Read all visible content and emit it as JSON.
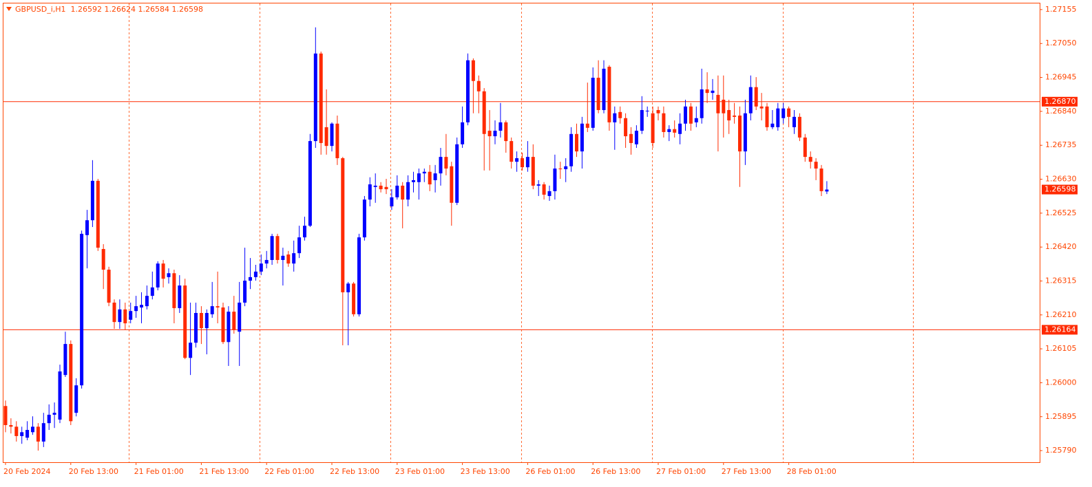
{
  "chart_data": {
    "type": "candlestick",
    "title": "GBPUSD_i,H1  1.26592 1.26624 1.26584 1.26598",
    "up_color": "#0000ff",
    "down_color": "#ff2a00",
    "ylim": [
      1.25754,
      1.27174
    ],
    "yticks": [
      1.27155,
      {
        "value": 1.2705,
        "label": "1.27050"
      },
      1.26945,
      {
        "value": 1.2684,
        "label": "1.26840"
      },
      1.26735,
      {
        "value": 1.2663,
        "label": "1.26630"
      },
      1.26525,
      {
        "value": 1.2642,
        "label": "1.26420"
      },
      1.26315,
      {
        "value": 1.2621,
        "label": "1.26210"
      },
      1.26105,
      {
        "value": 1.26,
        "label": "1.26000"
      },
      1.25895,
      {
        "value": 1.2579,
        "label": "1.25790"
      }
    ],
    "levels": [
      {
        "value": 1.2687,
        "label": "1.26870"
      },
      1.26164
    ],
    "last_price": 1.26598,
    "categories": [
      "20 Feb 2024",
      null,
      null,
      null,
      null,
      null,
      null,
      null,
      null,
      null,
      null,
      null,
      "20 Feb 13:00",
      null,
      null,
      null,
      null,
      null,
      null,
      null,
      null,
      null,
      null,
      null,
      "21 Feb 01:00",
      null,
      null,
      null,
      null,
      null,
      null,
      null,
      null,
      null,
      null,
      null,
      "21 Feb 13:00",
      null,
      null,
      null,
      null,
      null,
      null,
      null,
      null,
      null,
      null,
      null,
      "22 Feb 01:00",
      null,
      null,
      null,
      null,
      null,
      null,
      null,
      null,
      null,
      null,
      null,
      "22 Feb 13:00",
      null,
      null,
      null,
      null,
      null,
      null,
      null,
      null,
      null,
      null,
      null,
      "23 Feb 01:00",
      null,
      null,
      null,
      null,
      null,
      null,
      null,
      null,
      null,
      null,
      null,
      "23 Feb 13:00",
      null,
      null,
      null,
      null,
      null,
      null,
      null,
      null,
      null,
      null,
      null,
      "26 Feb 01:00",
      null,
      null,
      null,
      null,
      null,
      null,
      null,
      null,
      null,
      null,
      null,
      "26 Feb 13:00",
      null,
      null,
      null,
      null,
      null,
      null,
      null,
      null,
      null,
      null,
      null,
      "27 Feb 01:00",
      null,
      null,
      null,
      null,
      null,
      null,
      null,
      null,
      null,
      null,
      null,
      "27 Feb 13:00",
      null,
      null,
      null,
      null,
      null,
      null,
      null,
      null,
      null,
      null,
      null,
      "28 Feb 01:00",
      null,
      null,
      null,
      null,
      null,
      null,
      null
    ],
    "open": [
      1.25928,
      1.25869,
      1.25864,
      1.25835,
      1.2583,
      1.25847,
      1.25864,
      1.25818,
      1.25875,
      1.25901,
      1.25886,
      1.26024,
      1.2612,
      1.25907,
      1.25992,
      1.26457,
      1.26503,
      1.26625,
      1.26414,
      1.2635,
      1.26248,
      1.26188,
      1.26227,
      1.26195,
      1.26222,
      1.26233,
      1.26237,
      1.26269,
      1.26295,
      1.26369,
      1.26327,
      1.26339,
      1.26231,
      1.26301,
      1.26077,
      1.26124,
      1.26216,
      1.26169,
      1.26212,
      1.26237,
      1.26233,
      1.26126,
      1.2622,
      1.26158,
      1.26248,
      1.26316,
      1.26327,
      1.26344,
      1.26369,
      1.2638,
      1.26454,
      1.2638,
      1.26397,
      1.26369,
      1.26401,
      1.2645,
      1.26486,
      1.26748,
      1.27019,
      1.26791,
      1.26733,
      1.26802,
      1.26695,
      1.2628,
      1.26307,
      1.26212,
      1.2645,
      1.26567,
      1.26606,
      1.2661,
      1.26606,
      1.26546,
      1.26574,
      1.2661,
      1.26567,
      1.26621,
      1.26621,
      1.26648,
      1.26653,
      1.26627,
      1.26648,
      1.26699,
      1.2667,
      1.26557,
      1.26738,
      1.26806,
      1.26998,
      1.26934,
      1.26902,
      1.2678,
      1.26763,
      1.2678,
      1.26806,
      1.26748,
      1.26684,
      1.26695,
      1.26667,
      1.26699,
      1.2661,
      1.26614,
      1.26578,
      1.26593,
      1.26663,
      1.26661,
      1.2667,
      1.2677,
      1.26716,
      1.26802,
      1.26789,
      1.26944,
      1.26844,
      1.26978,
      1.26806,
      1.26838,
      1.26819,
      1.2677,
      1.26738,
      1.2678,
      1.2684,
      1.26834,
      1.26844,
      1.26834,
      1.26776,
      1.26785,
      1.2677,
      1.26802,
      1.26855,
      1.26806,
      1.26819,
      1.26908,
      1.26897,
      1.26891,
      1.26876,
      1.26844,
      1.26827,
      1.26827,
      1.26716,
      1.26834,
      1.26915,
      1.26855,
      1.26855,
      1.26791,
      1.26791,
      1.26819,
      1.26849,
      1.26791,
      1.26823,
      1.26759,
      1.26699,
      1.26684,
      1.26663,
      1.26592
    ],
    "high": [
      1.25945,
      1.2589,
      1.25881,
      1.25864,
      1.25881,
      1.25896,
      1.25875,
      1.25907,
      1.25933,
      1.25939,
      1.26056,
      1.26158,
      1.26131,
      1.26014,
      1.26471,
      1.26535,
      1.26689,
      1.26631,
      1.26429,
      1.26359,
      1.26258,
      1.26258,
      1.26248,
      1.26248,
      1.26269,
      1.2628,
      1.26301,
      1.26344,
      1.26376,
      1.2638,
      1.26354,
      1.2635,
      1.26333,
      1.26322,
      1.26248,
      1.26248,
      1.26237,
      1.26227,
      1.26312,
      1.26344,
      1.26248,
      1.26237,
      1.26269,
      1.26312,
      1.26418,
      1.26386,
      1.26365,
      1.26397,
      1.26408,
      1.26461,
      1.26461,
      1.26418,
      1.26408,
      1.2644,
      1.26486,
      1.26514,
      1.2677,
      1.271,
      1.27025,
      1.26908,
      1.26806,
      1.26827,
      1.26699,
      1.26312,
      1.26312,
      1.26461,
      1.26578,
      1.26636,
      1.26648,
      1.26621,
      1.26631,
      1.26599,
      1.26642,
      1.26621,
      1.26642,
      1.26653,
      1.26663,
      1.26663,
      1.26674,
      1.26674,
      1.26727,
      1.2677,
      1.26684,
      1.26759,
      1.26855,
      1.27019,
      1.27004,
      1.26951,
      1.26912,
      1.26844,
      1.26812,
      1.26866,
      1.26812,
      1.26759,
      1.26716,
      1.26712,
      1.26748,
      1.26738,
      1.26627,
      1.26621,
      1.2661,
      1.26706,
      1.26684,
      1.26695,
      1.26791,
      1.26802,
      1.26823,
      1.26929,
      1.26976,
      1.26998,
      1.26998,
      1.26983,
      1.26855,
      1.26855,
      1.26834,
      1.26791,
      1.26797,
      1.26887,
      1.26855,
      1.26855,
      1.26855,
      1.26855,
      1.26797,
      1.26812,
      1.26834,
      1.26876,
      1.26866,
      1.26855,
      1.26972,
      1.26961,
      1.2694,
      1.26951,
      1.26951,
      1.26876,
      1.26866,
      1.26855,
      1.26876,
      1.26951,
      1.26946,
      1.26897,
      1.26866,
      1.26844,
      1.26866,
      1.26866,
      1.26855,
      1.26844,
      1.26834,
      1.2677,
      1.26716,
      1.26695,
      1.26674,
      1.26624
    ],
    "low": [
      1.25847,
      1.25843,
      1.25818,
      1.25811,
      1.25822,
      1.25839,
      1.2579,
      1.25801,
      1.25854,
      1.2586,
      1.25875,
      1.26018,
      1.25869,
      1.25896,
      1.25982,
      1.26354,
      1.26482,
      1.26408,
      1.2629,
      1.26237,
      1.26167,
      1.26167,
      1.26163,
      1.26184,
      1.26201,
      1.26184,
      1.26227,
      1.26258,
      1.26286,
      1.26295,
      1.26307,
      1.26184,
      1.26216,
      1.26073,
      1.26024,
      1.26109,
      1.2612,
      1.26088,
      1.26201,
      1.26184,
      1.2612,
      1.26052,
      1.26152,
      1.26052,
      1.26237,
      1.2629,
      1.26316,
      1.26333,
      1.26354,
      1.26365,
      1.26369,
      1.26301,
      1.26359,
      1.26344,
      1.26386,
      1.2644,
      1.26482,
      1.26727,
      1.26706,
      1.26706,
      1.26716,
      1.26674,
      1.26116,
      1.26116,
      1.26205,
      1.26205,
      1.2644,
      1.26546,
      1.26557,
      1.26589,
      1.26584,
      1.26535,
      1.26567,
      1.26478,
      1.26546,
      1.26589,
      1.26567,
      1.26621,
      1.26593,
      1.26589,
      1.2661,
      1.26642,
      1.26486,
      1.2655,
      1.26727,
      1.26797,
      1.26834,
      1.26834,
      1.26657,
      1.26657,
      1.26738,
      1.26759,
      1.26712,
      1.26663,
      1.26653,
      1.26657,
      1.26653,
      1.26599,
      1.26578,
      1.26567,
      1.26563,
      1.26567,
      1.26631,
      1.26621,
      1.26653,
      1.26699,
      1.26663,
      1.26776,
      1.2678,
      1.26834,
      1.26834,
      1.2678,
      1.26721,
      1.26802,
      1.26727,
      1.26706,
      1.26727,
      1.2677,
      1.26823,
      1.26727,
      1.26812,
      1.26759,
      1.26748,
      1.26759,
      1.26738,
      1.2678,
      1.2678,
      1.26791,
      1.26802,
      1.26866,
      1.26876,
      1.26716,
      1.26759,
      1.2677,
      1.26802,
      1.26606,
      1.26674,
      1.26812,
      1.26844,
      1.26812,
      1.2678,
      1.26785,
      1.2678,
      1.26802,
      1.26791,
      1.2677,
      1.26748,
      1.26684,
      1.26663,
      1.26627,
      1.26578,
      1.26584
    ],
    "close": [
      1.25869,
      1.25864,
      1.25835,
      1.25847,
      1.25854,
      1.25864,
      1.25818,
      1.25875,
      1.25901,
      1.25907,
      1.26035,
      1.2612,
      1.25881,
      1.25992,
      1.26461,
      1.26503,
      1.26625,
      1.26418,
      1.2635,
      1.26248,
      1.26188,
      1.26227,
      1.26184,
      1.26222,
      1.26237,
      1.26241,
      1.26269,
      1.26295,
      1.26369,
      1.26322,
      1.26339,
      1.26231,
      1.26301,
      1.26077,
      1.26124,
      1.26216,
      1.26169,
      1.26216,
      1.26237,
      1.26233,
      1.26126,
      1.2622,
      1.26163,
      1.26248,
      1.26316,
      1.26327,
      1.26344,
      1.26369,
      1.2638,
      1.26454,
      1.2638,
      1.26393,
      1.26369,
      1.26401,
      1.2645,
      1.26486,
      1.26748,
      1.27019,
      1.26742,
      1.26733,
      1.26802,
      1.26695,
      1.2628,
      1.26307,
      1.26212,
      1.2645,
      1.26567,
      1.26614,
      1.2661,
      1.26599,
      1.26599,
      1.26574,
      1.2661,
      1.26567,
      1.26621,
      1.26627,
      1.26648,
      1.26653,
      1.26614,
      1.26648,
      1.26699,
      1.26663,
      1.26557,
      1.26738,
      1.26806,
      1.26998,
      1.26934,
      1.26902,
      1.2677,
      1.26763,
      1.2678,
      1.26806,
      1.26748,
      1.26684,
      1.26695,
      1.26667,
      1.26699,
      1.2661,
      1.26614,
      1.26582,
      1.26593,
      1.26663,
      1.26661,
      1.2667,
      1.2677,
      1.26716,
      1.26802,
      1.26789,
      1.26944,
      1.26844,
      1.26972,
      1.26806,
      1.26834,
      1.26819,
      1.26763,
      1.26742,
      1.2678,
      1.26844,
      1.26842,
      1.26742,
      1.26834,
      1.26776,
      1.26785,
      1.26774,
      1.26802,
      1.26855,
      1.26802,
      1.26819,
      1.26908,
      1.26897,
      1.26904,
      1.26834,
      1.26834,
      1.26812,
      1.26823,
      1.26716,
      1.26834,
      1.26915,
      1.26855,
      1.26849,
      1.26791,
      1.26802,
      1.26849,
      1.26849,
      1.26823,
      1.26823,
      1.26759,
      1.26699,
      1.26684,
      1.26663,
      1.26593,
      1.26598
    ]
  }
}
